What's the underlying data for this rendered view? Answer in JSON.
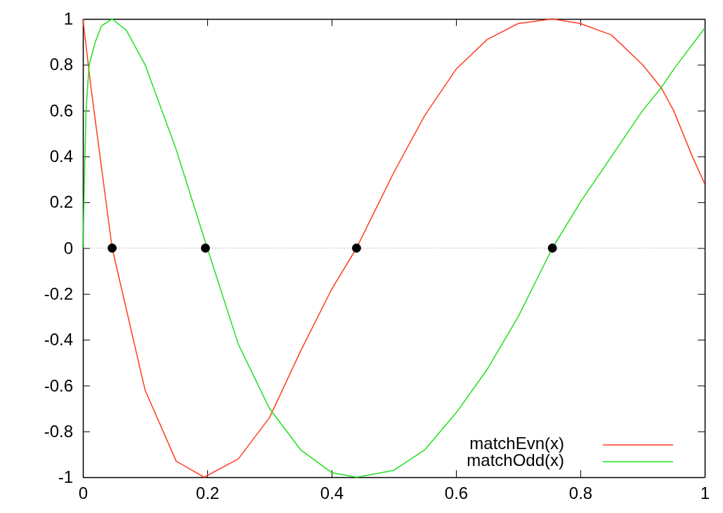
{
  "chart_data": {
    "type": "line",
    "xlim": [
      0,
      1
    ],
    "ylim": [
      -1,
      1
    ],
    "xticks": [
      0,
      0.2,
      0.4,
      0.6,
      0.8,
      1
    ],
    "yticks": [
      -1,
      -0.8,
      -0.6,
      -0.4,
      -0.2,
      0,
      0.2,
      0.4,
      0.6,
      0.8,
      1
    ],
    "grid": false,
    "legend": "bottom right",
    "line_style": "solid",
    "ref_lines": [
      {
        "axis": "y",
        "value": 0,
        "color": "#888888",
        "line_style": "dotted"
      }
    ],
    "series": [
      {
        "name": "matchEvn(x)",
        "color": "#ff3d1f",
        "x": [
          0,
          0.013,
          0.047,
          0.1,
          0.15,
          0.195,
          0.25,
          0.3,
          0.35,
          0.4,
          0.44,
          0.5,
          0.55,
          0.6,
          0.65,
          0.7,
          0.755,
          0.8,
          0.85,
          0.9,
          0.93,
          0.95,
          0.98,
          1
        ],
        "values": [
          1,
          0.7,
          0,
          -0.62,
          -0.93,
          -1,
          -0.92,
          -0.74,
          -0.45,
          -0.18,
          0,
          0.33,
          0.58,
          0.78,
          0.91,
          0.98,
          1,
          0.98,
          0.93,
          0.8,
          0.7,
          0.6,
          0.4,
          0.28
        ]
      },
      {
        "name": "matchOdd(x)",
        "color": "#1fe01f",
        "x": [
          0,
          0.005,
          0.01,
          0.02,
          0.03,
          0.047,
          0.07,
          0.1,
          0.15,
          0.2,
          0.25,
          0.3,
          0.35,
          0.4,
          0.44,
          0.5,
          0.55,
          0.6,
          0.65,
          0.7,
          0.755,
          0.8,
          0.85,
          0.9,
          0.93,
          0.95,
          1
        ],
        "values": [
          0,
          0.6,
          0.8,
          0.9,
          0.97,
          1,
          0.95,
          0.8,
          0.43,
          0,
          -0.42,
          -0.7,
          -0.88,
          -0.98,
          -1,
          -0.97,
          -0.88,
          -0.72,
          -0.53,
          -0.3,
          0,
          0.2,
          0.4,
          0.6,
          0.7,
          0.78,
          0.96
        ]
      },
      {
        "type": "scatter",
        "color": "#000000",
        "marker": "circle",
        "x": [
          0.047,
          0.197,
          0.44,
          0.755
        ],
        "values": [
          0,
          0,
          0,
          0
        ]
      }
    ]
  }
}
